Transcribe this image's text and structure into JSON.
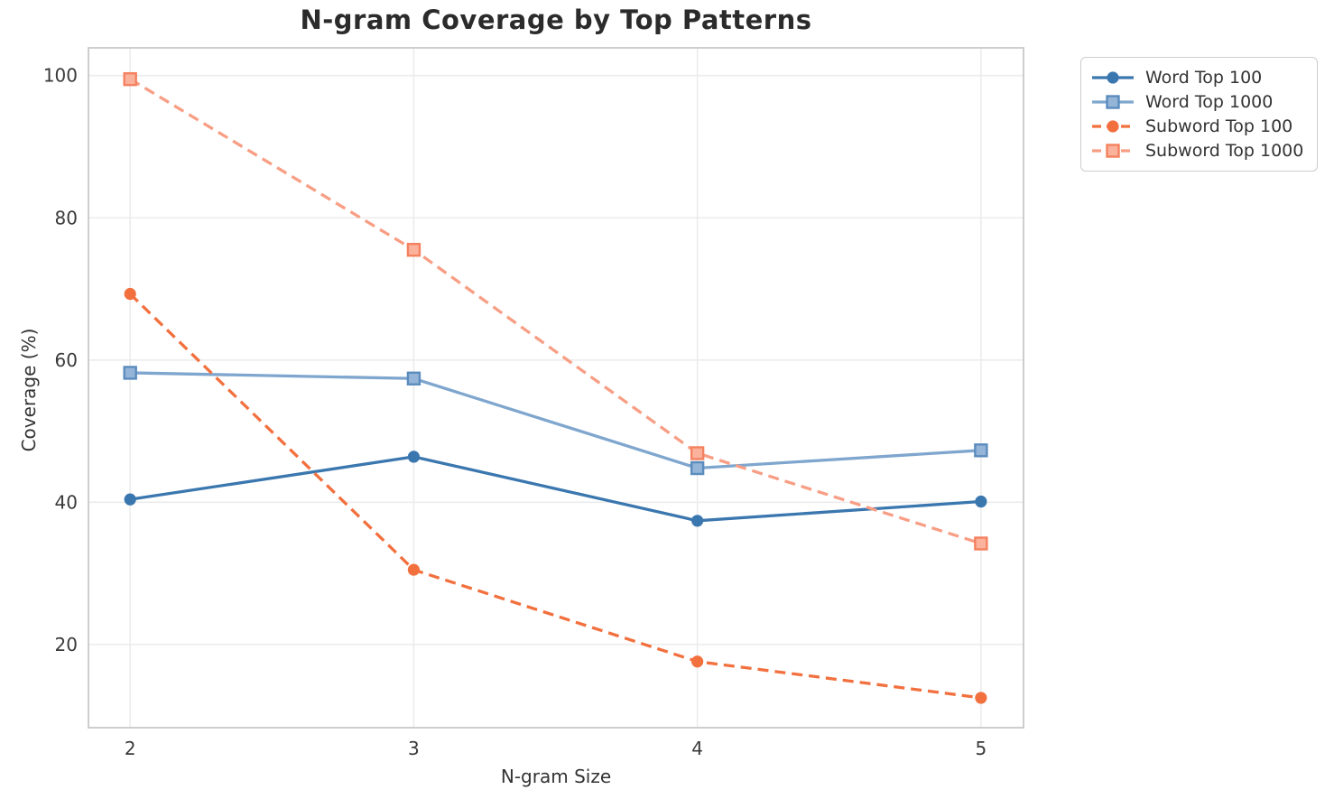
{
  "chart_data": {
    "type": "line",
    "title": "N-gram Coverage by Top Patterns",
    "xlabel": "N-gram Size",
    "ylabel": "Coverage (%)",
    "x": [
      2,
      3,
      4,
      5
    ],
    "xticks": [
      "2",
      "3",
      "4",
      "5"
    ],
    "yticks": [
      20,
      40,
      60,
      80,
      100
    ],
    "xlim": [
      1.853,
      5.15
    ],
    "ylim": [
      8.3,
      103.9
    ],
    "grid": true,
    "legend_position": "outside-top-right",
    "series": [
      {
        "name": "Word Top 100",
        "values": [
          40.4,
          46.4,
          37.4,
          40.1
        ],
        "color": "#3b77af",
        "marker": "circle",
        "marker_fill": "#3b77af",
        "marker_edge": "#3b77af",
        "line_style": "solid"
      },
      {
        "name": "Word Top 1000",
        "values": [
          58.2,
          57.4,
          44.8,
          47.3
        ],
        "color": "#7fa6ce",
        "marker": "square",
        "marker_fill": "#94b4d8",
        "marker_edge": "#5b8cbe",
        "line_style": "solid"
      },
      {
        "name": "Subword Top 100",
        "values": [
          69.3,
          30.5,
          17.6,
          12.5
        ],
        "color": "#f2703e",
        "marker": "circle",
        "marker_fill": "#f2703e",
        "marker_edge": "#f2703e",
        "line_style": "dashed"
      },
      {
        "name": "Subword Top 1000",
        "values": [
          99.5,
          75.5,
          46.9,
          34.2
        ],
        "color": "#f89e84",
        "marker": "square",
        "marker_fill": "#fbb29c",
        "marker_edge": "#f4815f",
        "line_style": "dashed"
      }
    ]
  }
}
